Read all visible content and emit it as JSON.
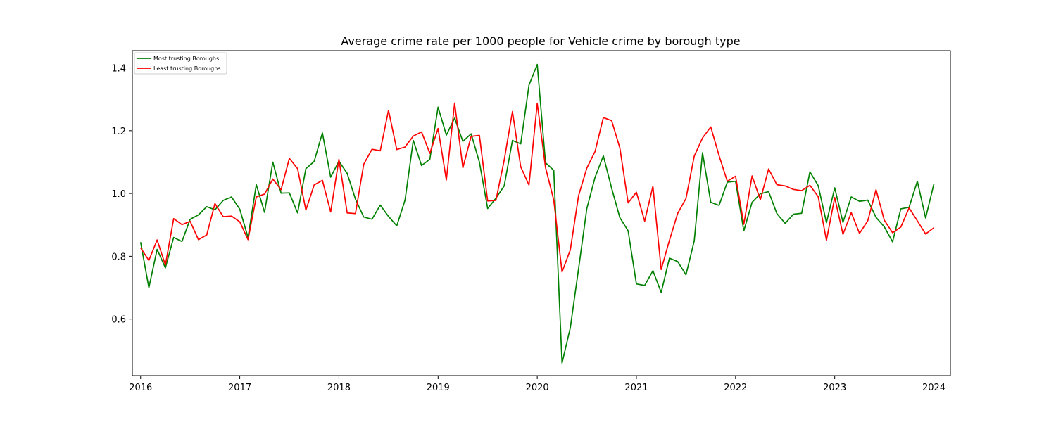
{
  "chart_data": {
    "type": "line",
    "title": "Average crime rate per 1000 people for Vehicle crime by borough type",
    "xlabel": "",
    "ylabel": "",
    "x_start": "2016-01",
    "xlim": [
      "2015-12",
      "2024-03"
    ],
    "ylim": [
      0.42,
      1.455
    ],
    "x_ticks": [
      "2016",
      "2017",
      "2018",
      "2019",
      "2020",
      "2021",
      "2022",
      "2023",
      "2024"
    ],
    "y_ticks": [
      0.6,
      0.8,
      1.0,
      1.2,
      1.4
    ],
    "y_tick_labels": [
      "0.6",
      "0.8",
      "1.0",
      "1.2",
      "1.4"
    ],
    "legend": {
      "position": "top-left"
    },
    "grid": false,
    "series": [
      {
        "name": "Most trusting Boroughs",
        "color": "#008000",
        "values": [
          0.845,
          0.7,
          0.822,
          0.763,
          0.86,
          0.847,
          0.918,
          0.932,
          0.958,
          0.948,
          0.978,
          0.989,
          0.95,
          0.86,
          1.028,
          0.94,
          1.1,
          1.001,
          1.002,
          0.938,
          1.079,
          1.102,
          1.193,
          1.052,
          1.103,
          1.064,
          0.982,
          0.925,
          0.918,
          0.963,
          0.927,
          0.897,
          0.979,
          1.169,
          1.089,
          1.109,
          1.275,
          1.186,
          1.24,
          1.166,
          1.19,
          1.1,
          0.952,
          0.985,
          1.024,
          1.169,
          1.158,
          1.345,
          1.411,
          1.098,
          1.074,
          0.46,
          0.572,
          0.76,
          0.952,
          1.052,
          1.12,
          1.017,
          0.923,
          0.881,
          0.712,
          0.707,
          0.754,
          0.685,
          0.794,
          0.783,
          0.741,
          0.849,
          1.13,
          0.972,
          0.962,
          1.036,
          1.039,
          0.881,
          0.972,
          0.999,
          1.006,
          0.936,
          0.905,
          0.934,
          0.937,
          1.069,
          1.025,
          0.907,
          1.018,
          0.908,
          0.989,
          0.975,
          0.979,
          0.924,
          0.894,
          0.846,
          0.951,
          0.956,
          1.039,
          0.922,
          1.03
        ]
      },
      {
        "name": "Least trusting Boroughs",
        "color": "#ff0000",
        "values": [
          0.827,
          0.787,
          0.852,
          0.772,
          0.92,
          0.901,
          0.911,
          0.853,
          0.868,
          0.968,
          0.926,
          0.928,
          0.91,
          0.853,
          0.989,
          0.998,
          1.046,
          1.012,
          1.112,
          1.079,
          0.947,
          1.027,
          1.042,
          0.941,
          1.109,
          0.938,
          0.936,
          1.093,
          1.141,
          1.136,
          1.265,
          1.14,
          1.148,
          1.183,
          1.196,
          1.128,
          1.207,
          1.043,
          1.288,
          1.082,
          1.182,
          1.185,
          0.976,
          0.978,
          1.106,
          1.261,
          1.085,
          1.027,
          1.287,
          1.083,
          0.979,
          0.75,
          0.82,
          0.993,
          1.081,
          1.134,
          1.242,
          1.232,
          1.145,
          0.97,
          1.004,
          0.912,
          1.023,
          0.758,
          0.851,
          0.937,
          0.984,
          1.119,
          1.177,
          1.212,
          1.121,
          1.039,
          1.055,
          0.902,
          1.056,
          0.98,
          1.078,
          1.028,
          1.024,
          1.013,
          1.009,
          1.026,
          0.99,
          0.851,
          0.987,
          0.87,
          0.939,
          0.873,
          0.913,
          1.012,
          0.915,
          0.875,
          0.893,
          0.954,
          0.913,
          0.871,
          0.891
        ]
      }
    ]
  }
}
